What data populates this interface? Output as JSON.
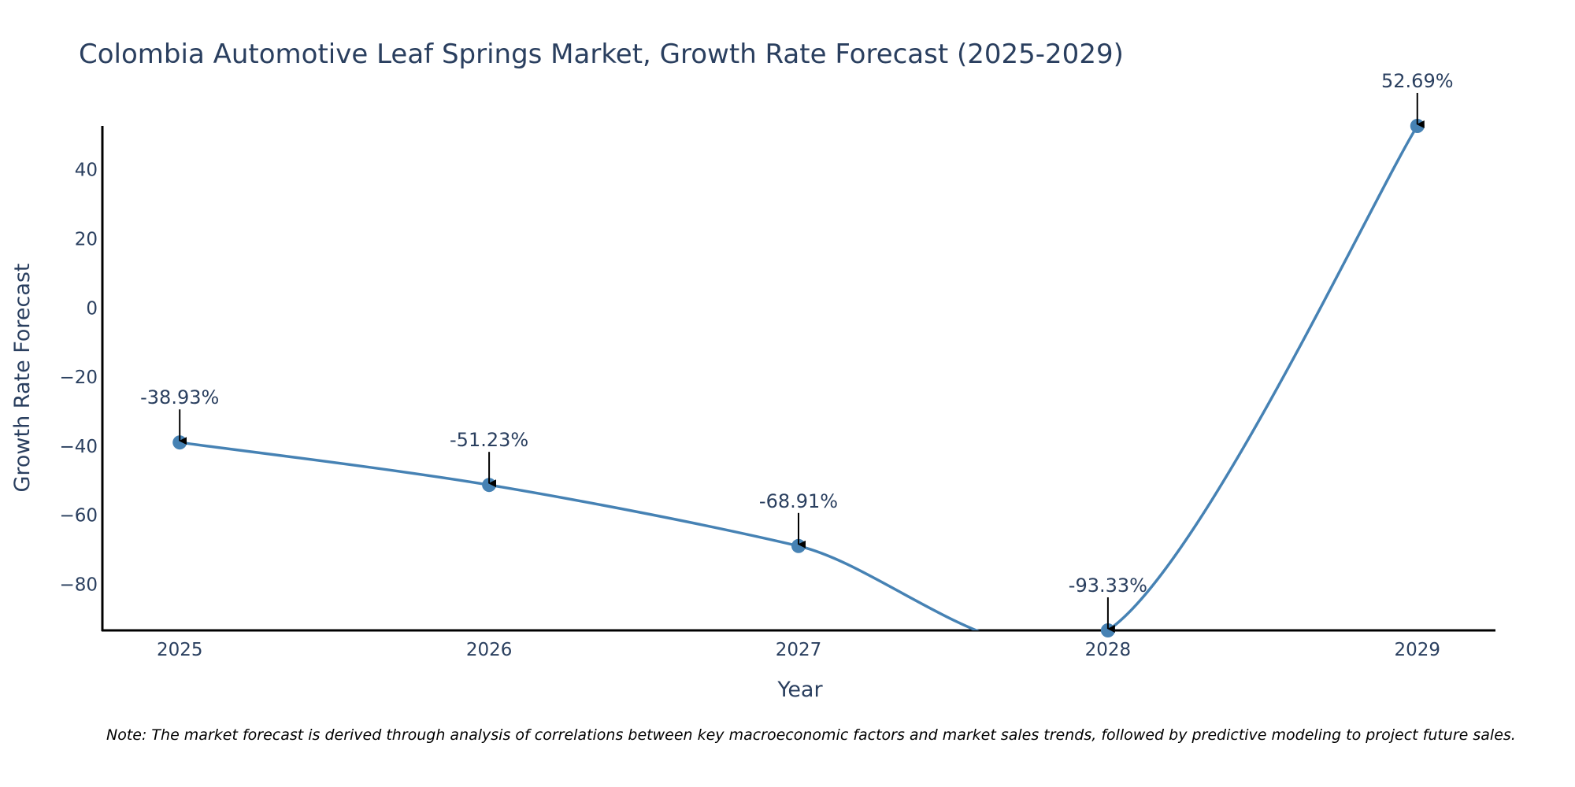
{
  "chart_data": {
    "type": "line",
    "title": "Colombia Automotive Leaf Springs Market, Growth Rate Forecast (2025-2029)",
    "xlabel": "Year",
    "ylabel": "Growth Rate Forecast",
    "categories": [
      "2025",
      "2026",
      "2027",
      "2028",
      "2029"
    ],
    "values": [
      -38.93,
      -51.23,
      -68.91,
      -93.33,
      52.69
    ],
    "data_labels": [
      "-38.93%",
      "-51.23%",
      "-68.91%",
      "-93.33%",
      "52.69%"
    ],
    "y_ticks": [
      40,
      20,
      0,
      -20,
      -40,
      -60,
      -80
    ],
    "y_tick_labels": [
      "40",
      "20",
      "0",
      "−20",
      "−40",
      "−60",
      "−80"
    ],
    "ylim": [
      -93.33,
      52.69
    ],
    "xlim": [
      2024.75,
      2029.25
    ],
    "grid": false,
    "legend": "none",
    "line_shape": "spline",
    "note": "Note: The market forecast is derived through analysis of correlations between key macroeconomic factors and market sales trends, followed by predictive modeling to project future sales."
  },
  "colors": {
    "line": "#4682b4",
    "marker": "#4682b4",
    "text": "#2a3f5f",
    "axis": "#000000",
    "arrow": "#000000"
  }
}
